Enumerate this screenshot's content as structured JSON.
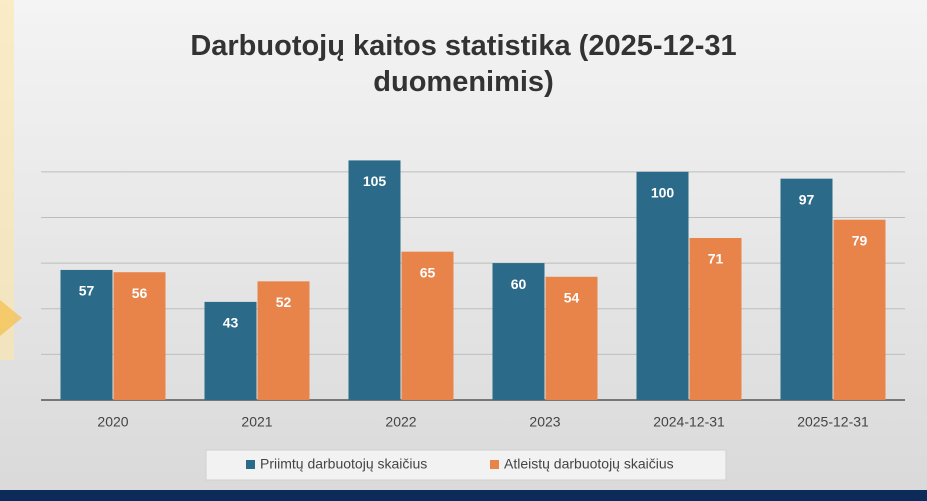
{
  "chart_data": {
    "type": "bar",
    "title": "Darbuotojų kaitos statistika (2025-12-31 duomenimis)",
    "categories": [
      "2020",
      "2021",
      "2022",
      "2023",
      "2024-12-31",
      "2025-12-31"
    ],
    "series": [
      {
        "name": "Priimtų darbuotojų skaičius",
        "color": "#2b6a88",
        "values": [
          57,
          43,
          105,
          60,
          100,
          97
        ]
      },
      {
        "name": "Atleistų darbuotojų skaičius",
        "color": "#e8834a",
        "values": [
          56,
          52,
          65,
          54,
          71,
          79
        ]
      }
    ],
    "ylim": [
      0,
      110
    ],
    "yticks": [
      0,
      20,
      40,
      60,
      80,
      100
    ],
    "grid": true,
    "legend": "bottom"
  }
}
